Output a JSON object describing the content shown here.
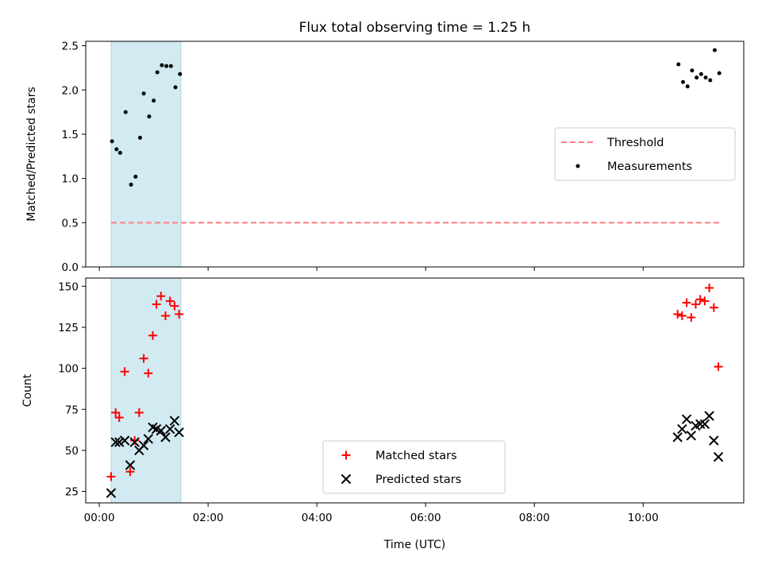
{
  "colors": {
    "matched": "#ff0000",
    "predicted": "#000000",
    "measurement": "#000000",
    "threshold": "#ff7f7f",
    "shade": "#add8e6"
  },
  "chart_data": [
    {
      "type": "scatter",
      "title": "Flux total observing time = 1.25 h",
      "xlabel": "",
      "ylabel": "Matched/Predicted stars",
      "xlim_hours": [
        -0.25,
        11.85
      ],
      "ylim": [
        0,
        2.55
      ],
      "yticks": [
        "0.0",
        "0.5",
        "1.0",
        "1.5",
        "2.0",
        "2.5"
      ],
      "shaded_interval": [
        "00:13",
        "01:30"
      ],
      "legend_position": "center-right",
      "threshold": {
        "name": "Threshold",
        "value": 0.5,
        "x_range": [
          "00:13",
          "11:25"
        ],
        "style": "dashed"
      },
      "series": [
        {
          "name": "Measurements",
          "points": [
            [
              "00:14",
              1.42
            ],
            [
              "00:19",
              1.33
            ],
            [
              "00:23",
              1.29
            ],
            [
              "00:29",
              1.75
            ],
            [
              "00:35",
              0.93
            ],
            [
              "00:40",
              1.02
            ],
            [
              "00:45",
              1.46
            ],
            [
              "00:49",
              1.96
            ],
            [
              "00:55",
              1.7
            ],
            [
              "01:00",
              1.88
            ],
            [
              "01:04",
              2.2
            ],
            [
              "01:09",
              2.28
            ],
            [
              "01:14",
              2.27
            ],
            [
              "01:19",
              2.27
            ],
            [
              "01:24",
              2.03
            ],
            [
              "01:29",
              2.18
            ],
            [
              "10:39",
              2.29
            ],
            [
              "10:44",
              2.09
            ],
            [
              "10:49",
              2.04
            ],
            [
              "10:54",
              2.22
            ],
            [
              "10:59",
              2.14
            ],
            [
              "11:04",
              2.18
            ],
            [
              "11:09",
              2.14
            ],
            [
              "11:14",
              2.11
            ],
            [
              "11:19",
              2.45
            ],
            [
              "11:24",
              2.19
            ]
          ]
        }
      ]
    },
    {
      "type": "scatter",
      "title": "",
      "xlabel": "Time (UTC)",
      "ylabel": "Count",
      "xlim_hours": [
        -0.25,
        11.85
      ],
      "ylim": [
        18,
        155
      ],
      "yticks": [
        "25",
        "50",
        "75",
        "100",
        "125",
        "150"
      ],
      "xticks": [
        "00:00",
        "02:00",
        "04:00",
        "06:00",
        "08:00",
        "10:00"
      ],
      "shaded_interval": [
        "00:13",
        "01:30"
      ],
      "legend_position": "lower-center",
      "series": [
        {
          "name": "Matched stars",
          "marker": "plus",
          "points": [
            [
              "00:13",
              34
            ],
            [
              "00:18",
              73
            ],
            [
              "00:22",
              70
            ],
            [
              "00:28",
              98
            ],
            [
              "00:34",
              37
            ],
            [
              "00:39",
              56
            ],
            [
              "00:44",
              73
            ],
            [
              "00:49",
              106
            ],
            [
              "00:54",
              97
            ],
            [
              "00:59",
              120
            ],
            [
              "01:03",
              139
            ],
            [
              "01:08",
              144
            ],
            [
              "01:13",
              132
            ],
            [
              "01:18",
              141
            ],
            [
              "01:23",
              138
            ],
            [
              "01:28",
              133
            ],
            [
              "10:38",
              133
            ],
            [
              "10:43",
              132
            ],
            [
              "10:48",
              140
            ],
            [
              "10:53",
              131
            ],
            [
              "10:58",
              139
            ],
            [
              "11:03",
              142
            ],
            [
              "11:08",
              141
            ],
            [
              "11:13",
              149
            ],
            [
              "11:18",
              137
            ],
            [
              "11:23",
              101
            ]
          ]
        },
        {
          "name": "Predicted stars",
          "marker": "x",
          "points": [
            [
              "00:13",
              24
            ],
            [
              "00:18",
              55
            ],
            [
              "00:22",
              55
            ],
            [
              "00:28",
              56
            ],
            [
              "00:34",
              41
            ],
            [
              "00:39",
              55
            ],
            [
              "00:44",
              50
            ],
            [
              "00:49",
              53
            ],
            [
              "00:54",
              57
            ],
            [
              "00:59",
              64
            ],
            [
              "01:03",
              63
            ],
            [
              "01:08",
              62
            ],
            [
              "01:13",
              58
            ],
            [
              "01:18",
              63
            ],
            [
              "01:23",
              68
            ],
            [
              "01:28",
              61
            ],
            [
              "10:38",
              58
            ],
            [
              "10:43",
              63
            ],
            [
              "10:48",
              69
            ],
            [
              "10:53",
              59
            ],
            [
              "10:58",
              65
            ],
            [
              "11:03",
              66
            ],
            [
              "11:08",
              66
            ],
            [
              "11:13",
              71
            ],
            [
              "11:18",
              56
            ],
            [
              "11:23",
              46
            ]
          ]
        }
      ]
    }
  ]
}
